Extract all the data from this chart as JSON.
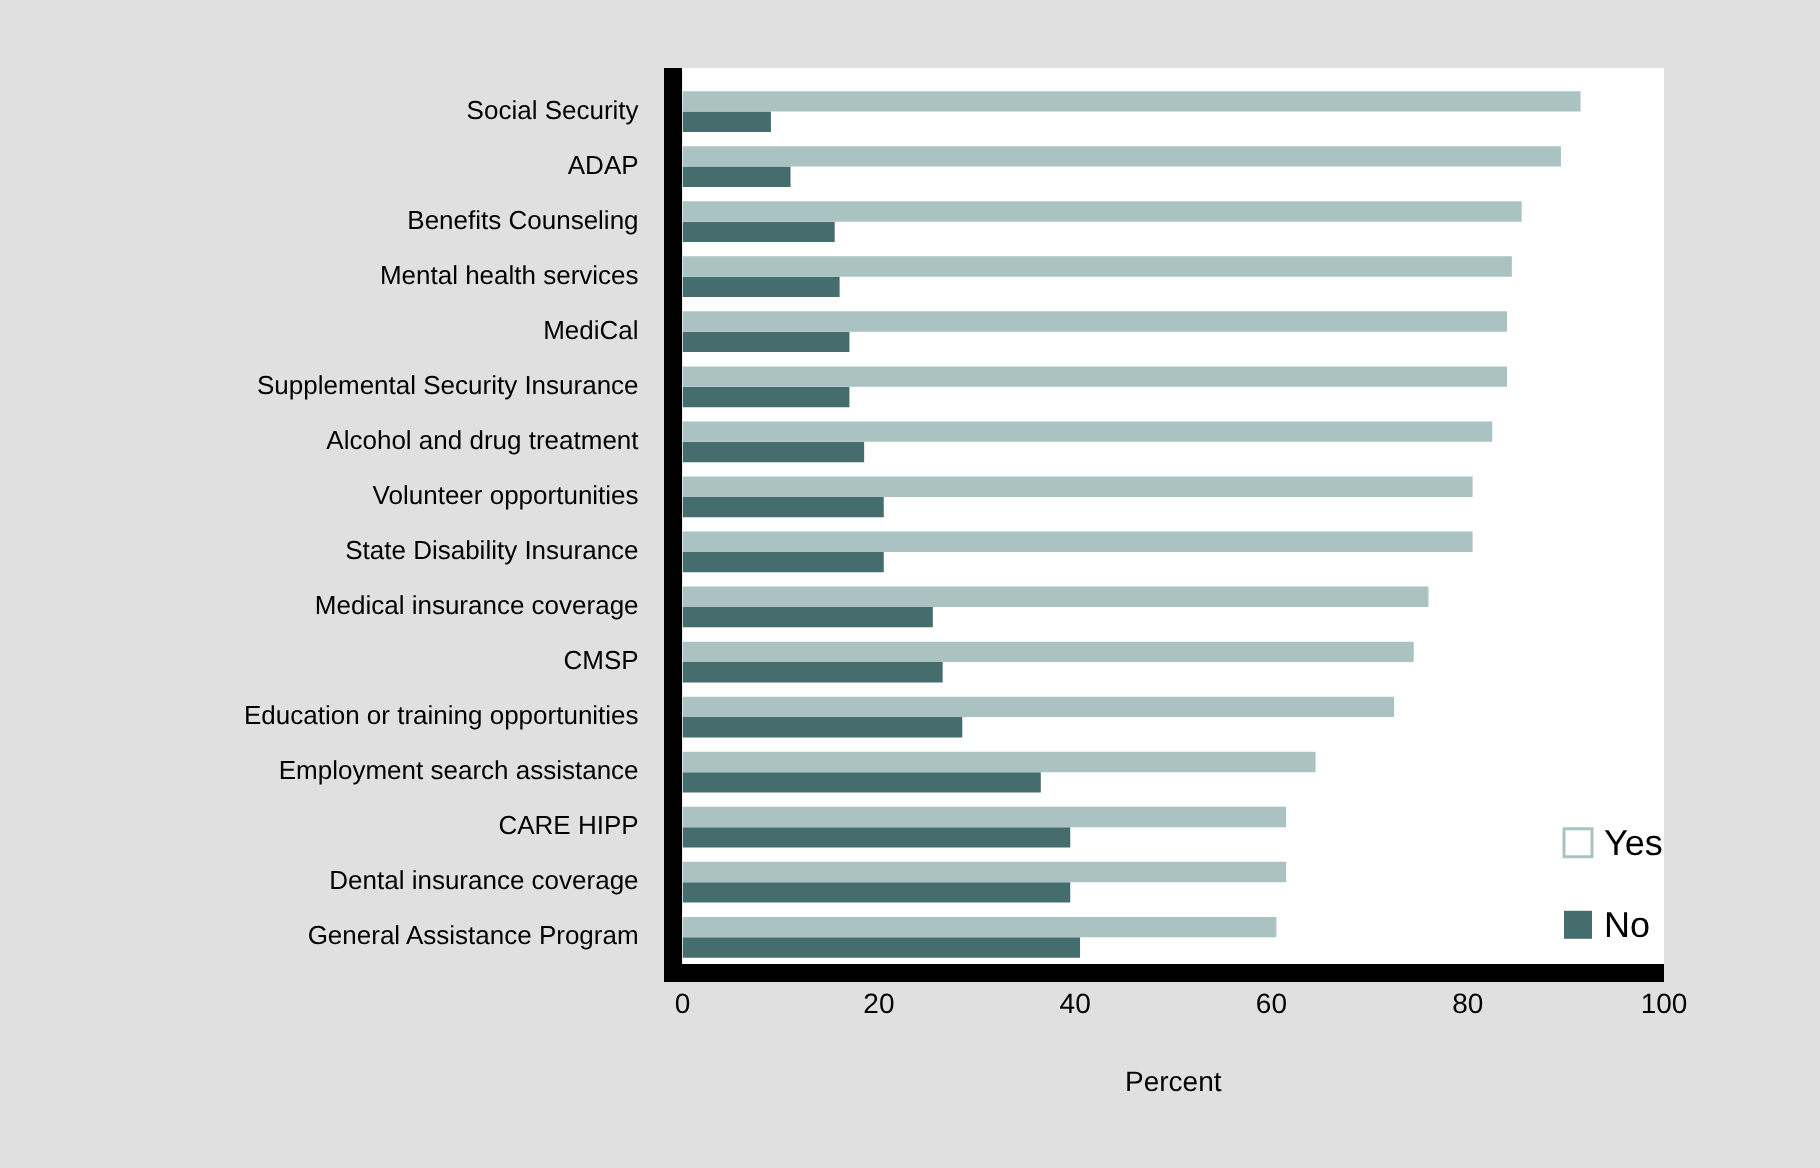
{
  "chart_data": {
    "type": "bar",
    "orientation": "horizontal",
    "xlabel": "Percent",
    "categories": [
      "Social Security",
      "ADAP",
      "Benefits Counseling",
      "Mental health services",
      "MediCal",
      "Supplemental Security Insurance",
      "Alcohol and drug treatment",
      "Volunteer opportunities",
      "State Disability Insurance",
      "Medical insurance coverage",
      "CMSP",
      "Education or training opportunities",
      "Employment search assistance",
      "CARE HIPP",
      "Dental insurance coverage",
      "General Assistance Program"
    ],
    "series": [
      {
        "name": "Yes",
        "color": "#abc2c3",
        "values": [
          91.5,
          89.5,
          85.5,
          84.5,
          84,
          84,
          82.5,
          80.5,
          80.5,
          76,
          74.5,
          72.5,
          64.5,
          61.5,
          61.5,
          60.5
        ]
      },
      {
        "name": "No",
        "color": "#466d6e",
        "values": [
          9,
          11,
          15.5,
          16,
          17,
          17,
          18.5,
          20.5,
          20.5,
          25.5,
          26.5,
          28.5,
          36.5,
          39.5,
          39.5,
          40.5
        ]
      }
    ],
    "xlim": [
      0,
      100
    ],
    "xticks": [
      0,
      20,
      40,
      60,
      80,
      100
    ],
    "grid": false,
    "legend": "bottom right"
  }
}
